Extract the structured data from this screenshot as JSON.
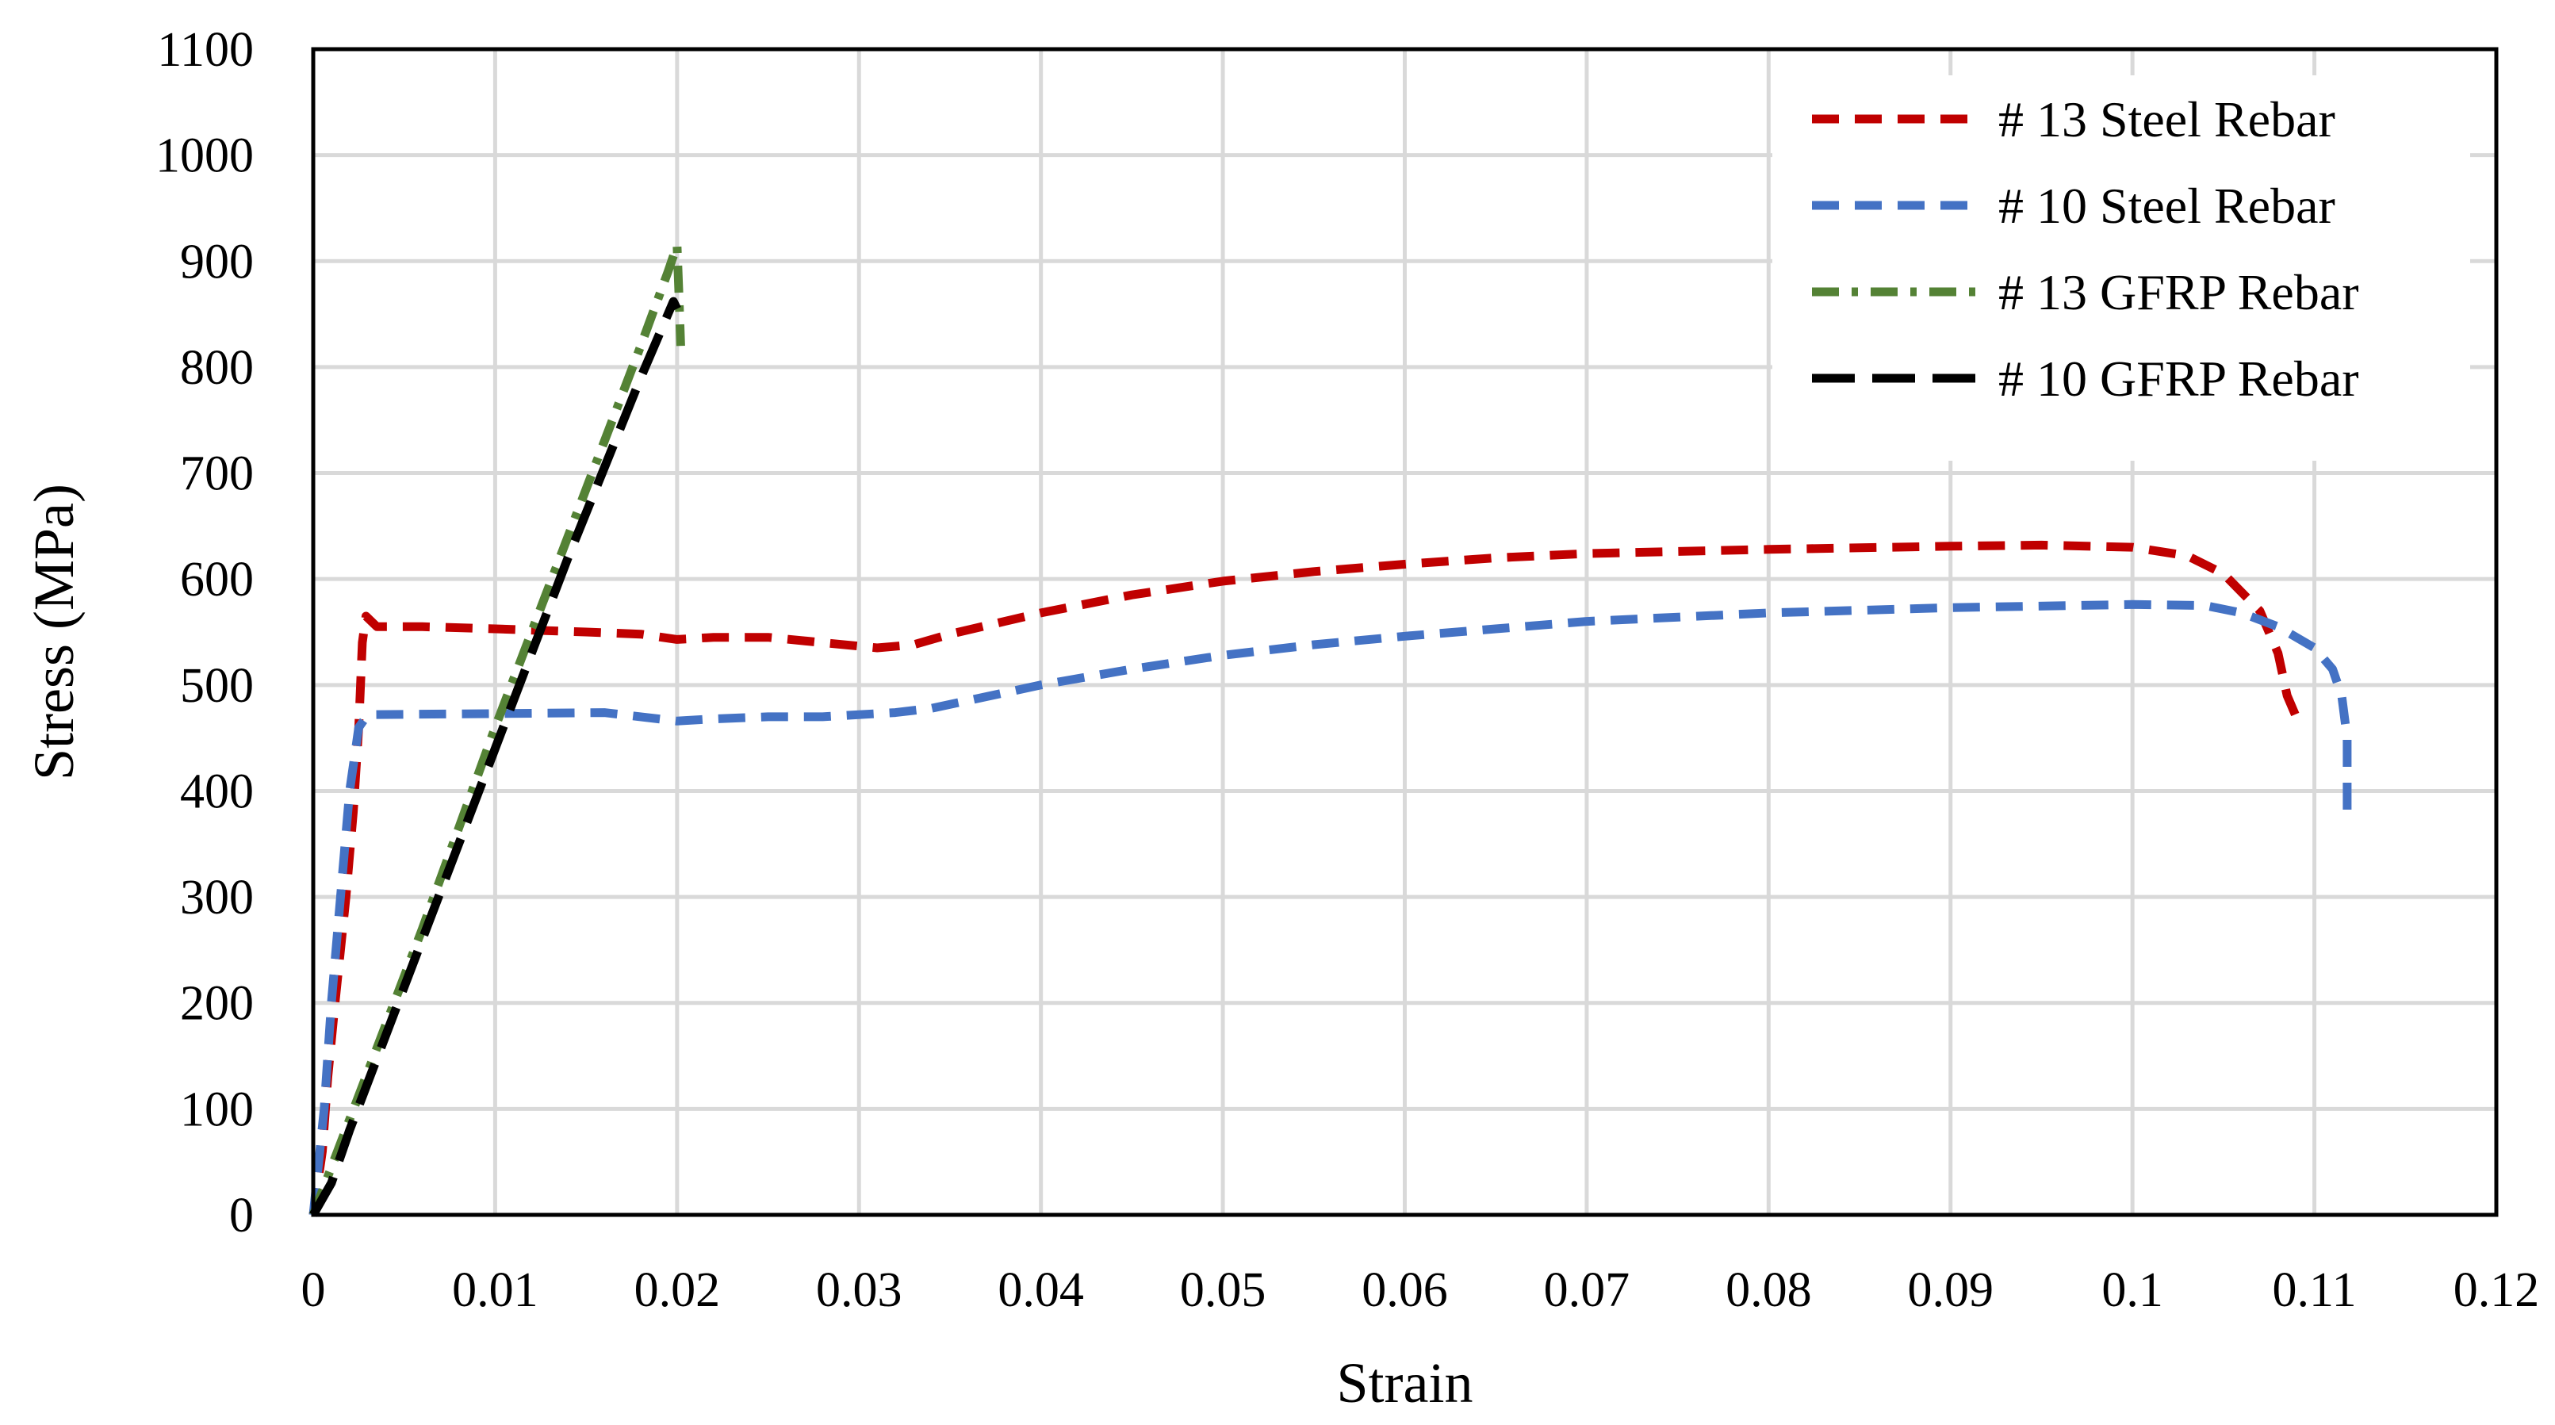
{
  "chart_data": {
    "type": "line",
    "title": "",
    "xlabel": "Strain",
    "ylabel": "Stress (MPa)",
    "xlim": [
      0,
      0.12
    ],
    "ylim": [
      0,
      1100
    ],
    "xticks": [
      "0",
      "0.01",
      "0.02",
      "0.03",
      "0.04",
      "0.05",
      "0.06",
      "0.07",
      "0.08",
      "0.09",
      "0.1",
      "0.11",
      "0.12"
    ],
    "yticks": [
      "0",
      "100",
      "200",
      "300",
      "400",
      "500",
      "600",
      "700",
      "800",
      "900",
      "1000",
      "1100"
    ],
    "grid": true,
    "legend_position": "top-right",
    "series": [
      {
        "name": "# 13 Steel Rebar",
        "color": "#c00000",
        "dash": "dashed",
        "points": [
          [
            0,
            0
          ],
          [
            0.0005,
            60
          ],
          [
            0.0008,
            130
          ],
          [
            0.0012,
            200
          ],
          [
            0.0018,
            300
          ],
          [
            0.0022,
            380
          ],
          [
            0.0025,
            460
          ],
          [
            0.0027,
            540
          ],
          [
            0.0029,
            565
          ],
          [
            0.0035,
            555
          ],
          [
            0.006,
            555
          ],
          [
            0.01,
            553
          ],
          [
            0.015,
            550
          ],
          [
            0.018,
            548
          ],
          [
            0.02,
            543
          ],
          [
            0.022,
            545
          ],
          [
            0.025,
            545
          ],
          [
            0.028,
            540
          ],
          [
            0.031,
            535
          ],
          [
            0.033,
            538
          ],
          [
            0.035,
            548
          ],
          [
            0.04,
            568
          ],
          [
            0.045,
            585
          ],
          [
            0.05,
            598
          ],
          [
            0.055,
            607
          ],
          [
            0.06,
            614
          ],
          [
            0.065,
            620
          ],
          [
            0.07,
            624
          ],
          [
            0.08,
            628
          ],
          [
            0.09,
            631
          ],
          [
            0.095,
            632
          ],
          [
            0.1,
            630
          ],
          [
            0.103,
            622
          ],
          [
            0.105,
            605
          ],
          [
            0.107,
            570
          ],
          [
            0.108,
            530
          ],
          [
            0.1085,
            490
          ],
          [
            0.109,
            470
          ]
        ]
      },
      {
        "name": "# 10 Steel Rebar",
        "color": "#4472c4",
        "dash": "dashed",
        "points": [
          [
            0,
            0
          ],
          [
            0.0003,
            50
          ],
          [
            0.0006,
            100
          ],
          [
            0.001,
            200
          ],
          [
            0.0015,
            300
          ],
          [
            0.002,
            400
          ],
          [
            0.0025,
            460
          ],
          [
            0.003,
            472
          ],
          [
            0.01,
            473
          ],
          [
            0.016,
            474
          ],
          [
            0.02,
            466
          ],
          [
            0.022,
            468
          ],
          [
            0.025,
            470
          ],
          [
            0.028,
            470
          ],
          [
            0.032,
            474
          ],
          [
            0.034,
            478
          ],
          [
            0.04,
            500
          ],
          [
            0.045,
            515
          ],
          [
            0.05,
            528
          ],
          [
            0.055,
            538
          ],
          [
            0.06,
            546
          ],
          [
            0.065,
            553
          ],
          [
            0.07,
            560
          ],
          [
            0.08,
            568
          ],
          [
            0.09,
            573
          ],
          [
            0.1,
            576
          ],
          [
            0.104,
            575
          ],
          [
            0.106,
            568
          ],
          [
            0.108,
            555
          ],
          [
            0.11,
            535
          ],
          [
            0.111,
            515
          ],
          [
            0.1115,
            490
          ],
          [
            0.1118,
            450
          ],
          [
            0.1118,
            380
          ]
        ]
      },
      {
        "name": "# 13 GFRP Rebar",
        "color": "#548235",
        "dash": "dashdot",
        "points": [
          [
            0,
            0
          ],
          [
            0.002,
            90
          ],
          [
            0.004,
            180
          ],
          [
            0.006,
            270
          ],
          [
            0.008,
            365
          ],
          [
            0.01,
            460
          ],
          [
            0.012,
            550
          ],
          [
            0.014,
            640
          ],
          [
            0.016,
            730
          ],
          [
            0.018,
            820
          ],
          [
            0.0195,
            890
          ],
          [
            0.02,
            915
          ],
          [
            0.0201,
            870
          ],
          [
            0.0202,
            820
          ]
        ]
      },
      {
        "name": "# 10 GFRP Rebar",
        "color": "#000000",
        "dash": "longdash",
        "points": [
          [
            0,
            0
          ],
          [
            0.001,
            30
          ],
          [
            0.002,
            80
          ],
          [
            0.004,
            170
          ],
          [
            0.006,
            260
          ],
          [
            0.008,
            350
          ],
          [
            0.01,
            440
          ],
          [
            0.012,
            530
          ],
          [
            0.014,
            620
          ],
          [
            0.016,
            705
          ],
          [
            0.018,
            790
          ],
          [
            0.0198,
            862
          ],
          [
            0.02,
            855
          ]
        ]
      }
    ]
  }
}
